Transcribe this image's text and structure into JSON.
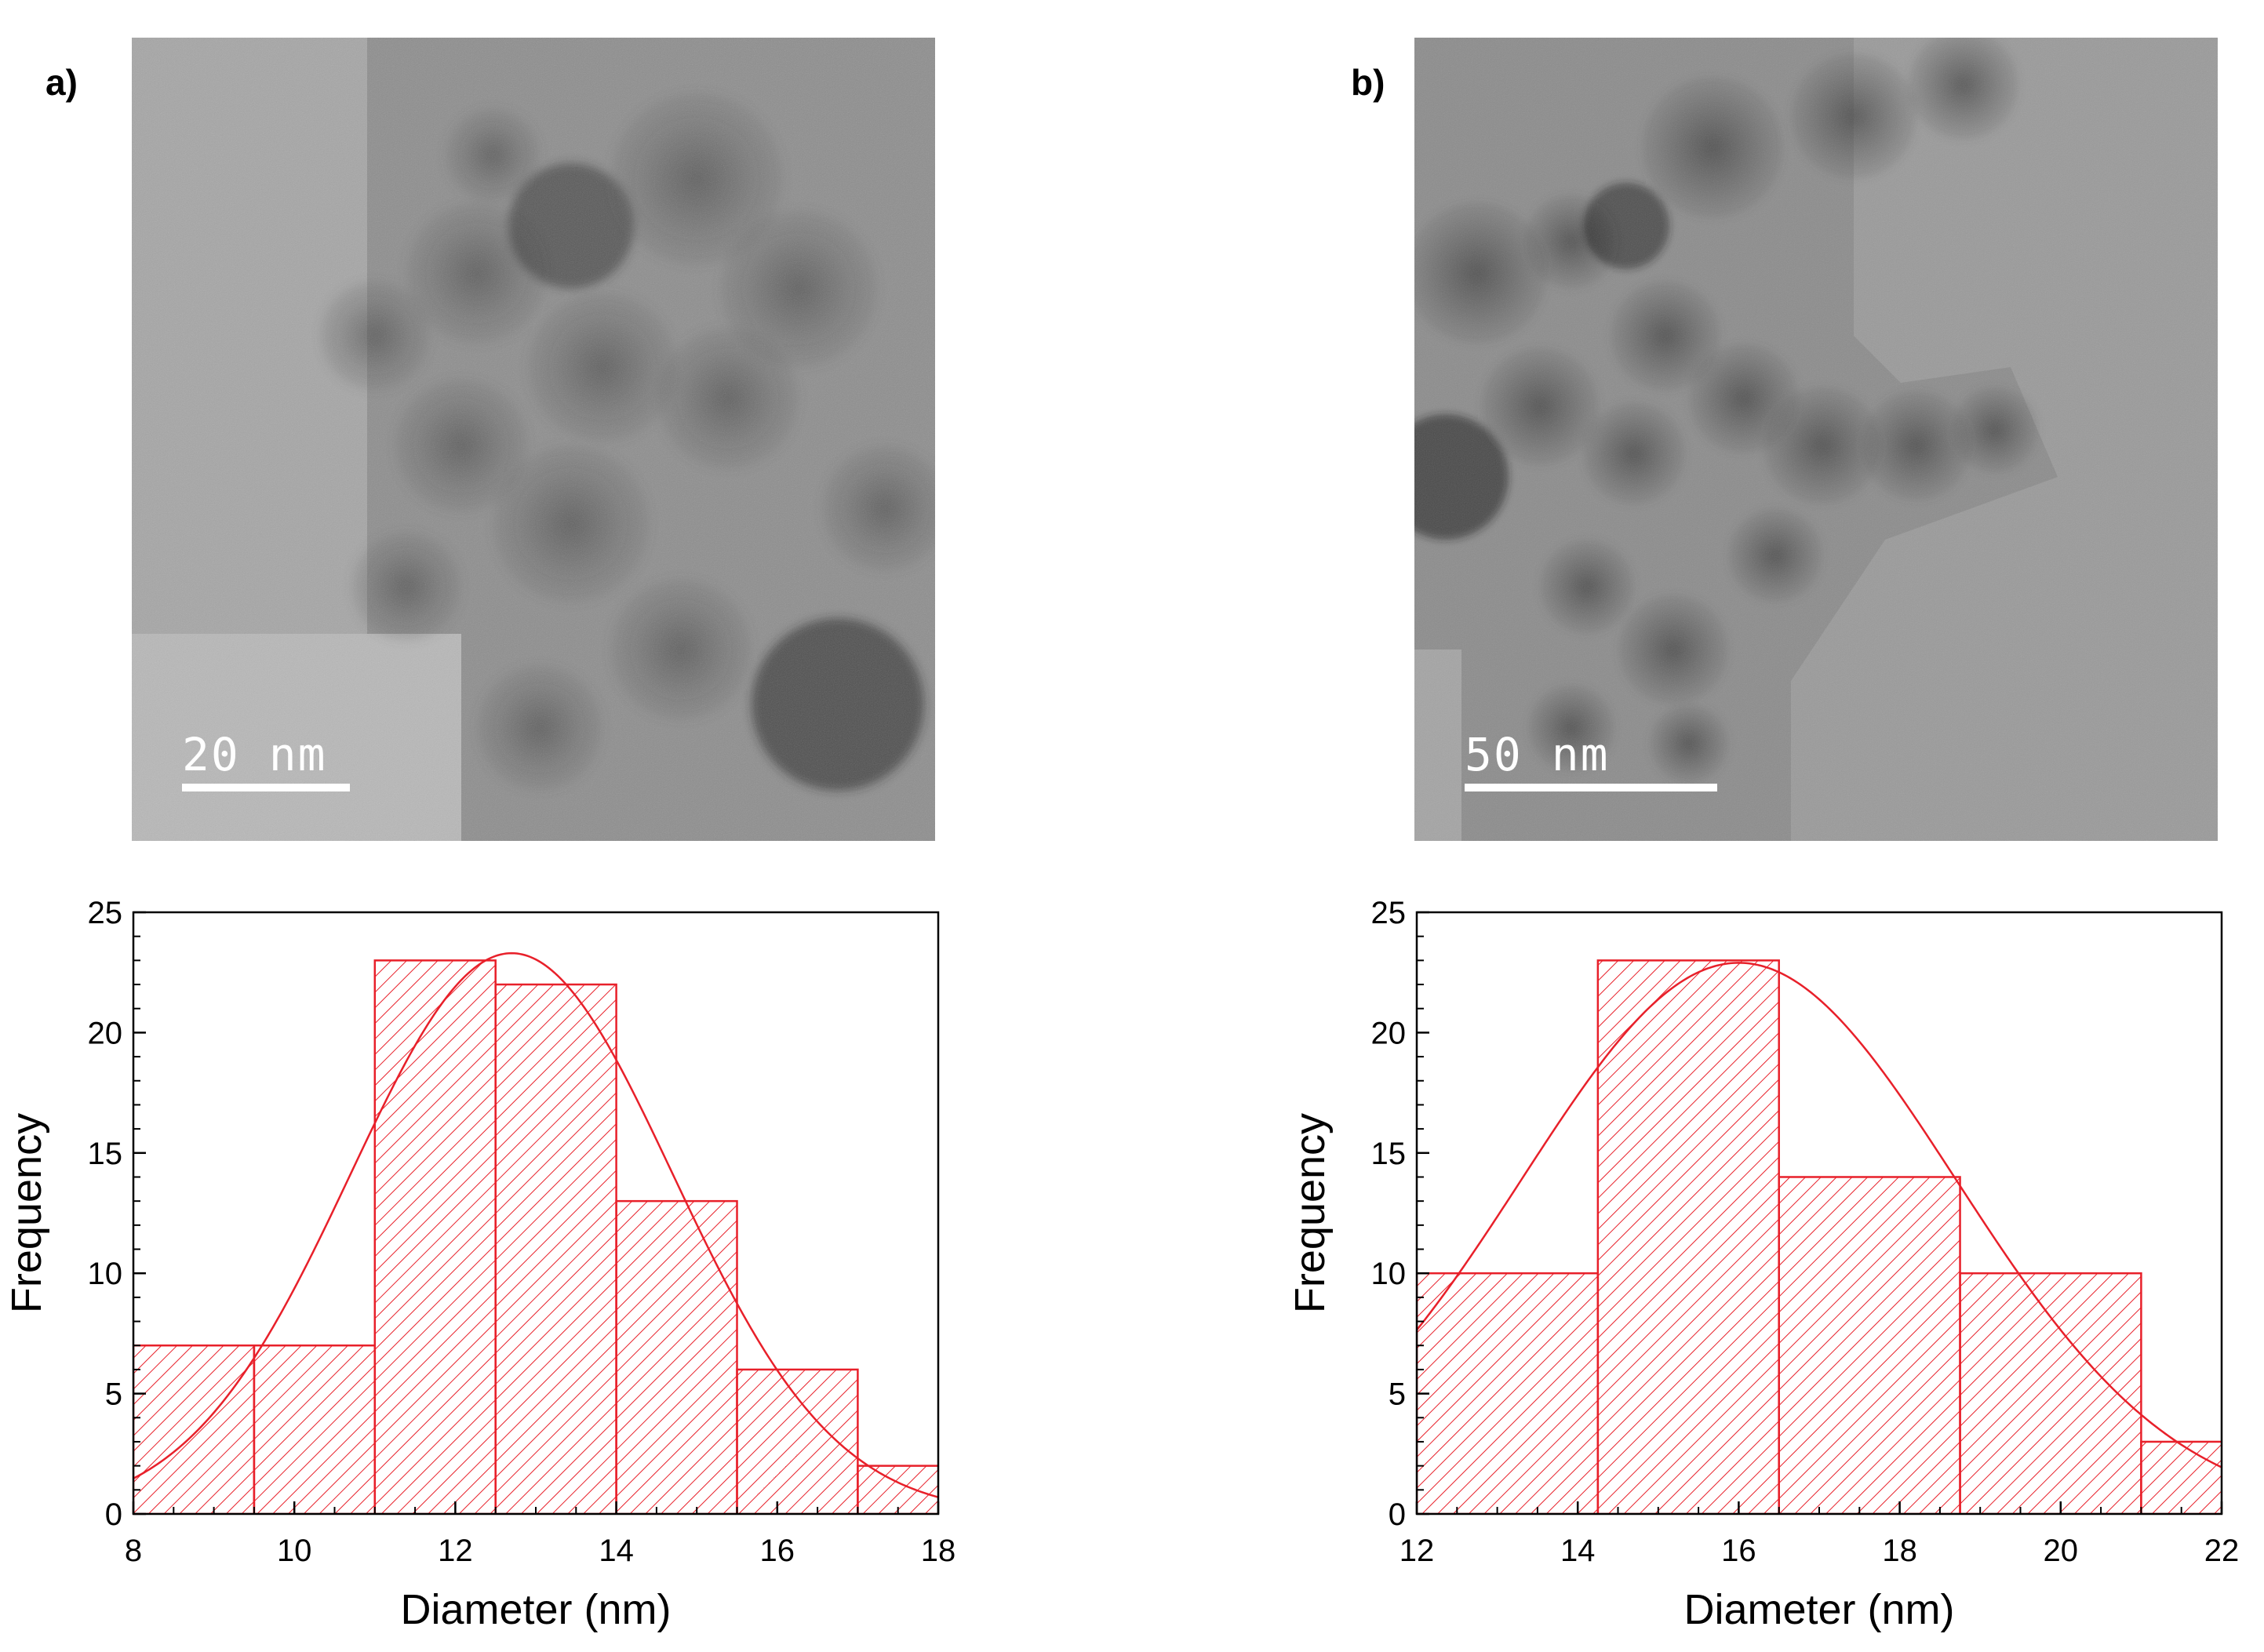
{
  "panels": [
    {
      "label": "a)",
      "scale_bar_text": "20 nm"
    },
    {
      "label": "b)",
      "scale_bar_text": "50 nm"
    }
  ],
  "chart_data": [
    {
      "type": "bar",
      "xlabel": "Diameter (nm)",
      "ylabel": "Frequency",
      "xlim": [
        8,
        18
      ],
      "ylim": [
        0,
        25
      ],
      "xticks": [
        8,
        10,
        12,
        14,
        16,
        18
      ],
      "yticks": [
        0,
        5,
        10,
        15,
        20,
        25
      ],
      "bins": [
        {
          "x0": 8.0,
          "x1": 9.5,
          "value": 7
        },
        {
          "x0": 9.5,
          "x1": 11.0,
          "value": 7
        },
        {
          "x0": 11.0,
          "x1": 12.5,
          "value": 23
        },
        {
          "x0": 12.5,
          "x1": 14.0,
          "value": 22
        },
        {
          "x0": 14.0,
          "x1": 15.5,
          "value": 13
        },
        {
          "x0": 15.5,
          "x1": 17.0,
          "value": 6
        },
        {
          "x0": 17.0,
          "x1": 18.5,
          "value": 2
        }
      ],
      "fit": {
        "type": "gaussian",
        "amplitude": 23.3,
        "mean": 12.7,
        "sigma": 2.0
      },
      "color": "#e8202a",
      "fill": "diagonal-hatch",
      "grid": false
    },
    {
      "type": "bar",
      "xlabel": "Diameter (nm)",
      "ylabel": "Frequency",
      "xlim": [
        12,
        22
      ],
      "ylim": [
        0,
        25
      ],
      "xticks": [
        12,
        14,
        16,
        18,
        20,
        22
      ],
      "yticks": [
        0,
        5,
        10,
        15,
        20,
        25
      ],
      "bins": [
        {
          "x0": 12.0,
          "x1": 14.25,
          "value": 10
        },
        {
          "x0": 14.25,
          "x1": 16.5,
          "value": 23
        },
        {
          "x0": 16.5,
          "x1": 18.75,
          "value": 14
        },
        {
          "x0": 18.75,
          "x1": 21.0,
          "value": 10
        },
        {
          "x0": 21.0,
          "x1": 23.25,
          "value": 3
        }
      ],
      "fit": {
        "type": "gaussian",
        "amplitude": 22.9,
        "mean": 16.0,
        "sigma": 2.7
      },
      "color": "#e8202a",
      "fill": "diagonal-hatch",
      "grid": false
    }
  ]
}
